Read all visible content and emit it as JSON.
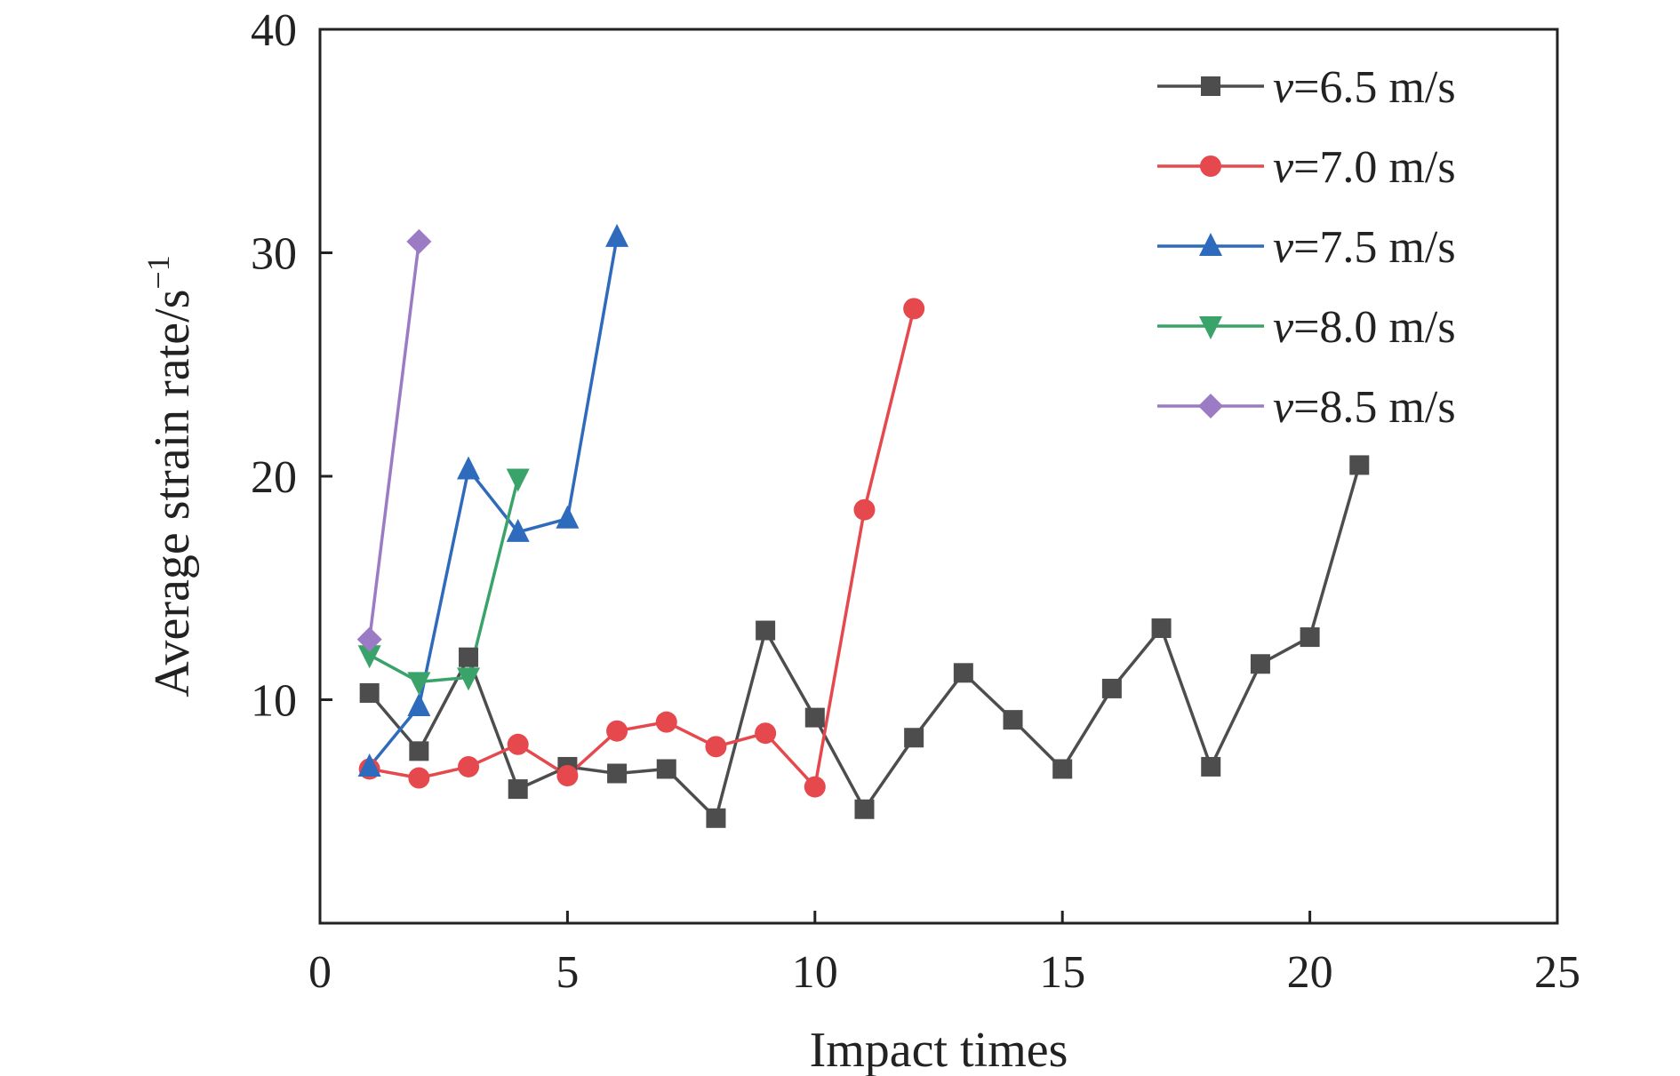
{
  "chart_data": {
    "type": "line",
    "xlabel": "Impact times",
    "ylabel": "Average strain rate/s",
    "ylabel_superscript": "−1",
    "xlim": [
      0,
      25
    ],
    "ylim": [
      0,
      40
    ],
    "x_ticks": [
      "0",
      "5",
      "10",
      "15",
      "20",
      "25"
    ],
    "y_ticks": [
      "10",
      "20",
      "30",
      "40"
    ],
    "grid": false,
    "legend_position": "top-right",
    "series": [
      {
        "name": "v=6.5 m/s",
        "name_italic": "v",
        "name_rest": "=6.5 m/s",
        "color": "#4d4d4d",
        "marker": "square",
        "x": [
          1,
          2,
          3,
          4,
          5,
          6,
          7,
          8,
          9,
          10,
          11,
          12,
          13,
          14,
          15,
          16,
          17,
          18,
          19,
          20,
          21
        ],
        "y": [
          10.3,
          7.7,
          11.9,
          6.0,
          7.0,
          6.7,
          6.9,
          4.7,
          13.1,
          9.2,
          5.1,
          8.3,
          11.2,
          9.1,
          6.9,
          10.5,
          13.2,
          7.0,
          11.6,
          12.8,
          20.5
        ]
      },
      {
        "name": "v=7.0 m/s",
        "name_italic": "v",
        "name_rest": "=7.0 m/s",
        "color": "#e5484d",
        "marker": "circle",
        "x": [
          1,
          2,
          3,
          4,
          5,
          6,
          7,
          8,
          9,
          10,
          11,
          12
        ],
        "y": [
          6.9,
          6.5,
          7.0,
          8.0,
          6.6,
          8.6,
          9.0,
          7.9,
          8.5,
          6.1,
          18.5,
          27.5
        ]
      },
      {
        "name": "v=7.5 m/s",
        "name_italic": "v",
        "name_rest": "=7.5 m/s",
        "color": "#2f6bbd",
        "marker": "triangle-up",
        "x": [
          1,
          2,
          3,
          4,
          5,
          6
        ],
        "y": [
          7.0,
          9.7,
          20.3,
          17.5,
          18.1,
          30.7
        ]
      },
      {
        "name": "v=8.0 m/s",
        "name_italic": "v",
        "name_rest": "=8.0 m/s",
        "color": "#3aa36a",
        "marker": "triangle-down",
        "x": [
          1,
          2,
          3,
          4
        ],
        "y": [
          12.0,
          10.8,
          11.0,
          19.9
        ]
      },
      {
        "name": "v=8.5 m/s",
        "name_italic": "v",
        "name_rest": "=8.5 m/s",
        "color": "#9b7bc4",
        "marker": "diamond",
        "x": [
          1,
          2
        ],
        "y": [
          12.7,
          30.5
        ]
      }
    ]
  }
}
